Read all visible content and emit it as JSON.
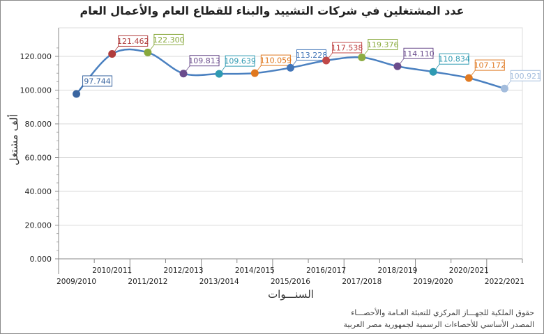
{
  "chart_data": {
    "type": "line",
    "title": "عدد المشتغلين في شركات التشييد والبناء للقطاع العام والأعمال العام",
    "ylabel": "ألف مشتغل",
    "xlabel": "السنـــوات",
    "categories": [
      "2009/2010",
      "2010/2011",
      "2011/2012",
      "2012/2013",
      "2013/2014",
      "2014/2015",
      "2015/2016",
      "2016/2017",
      "2017/2018",
      "2018/2019",
      "2019/2020",
      "2020/2021",
      "2022/2021"
    ],
    "values": [
      97.744,
      121.462,
      122.3,
      109.813,
      109.639,
      110.059,
      113.228,
      117.538,
      119.376,
      114.11,
      110.834,
      107.172,
      100.921
    ],
    "data_labels": [
      "97.744",
      "121.462",
      "122.300",
      "109.813",
      "109.639",
      "110.059",
      "113.228",
      "117.538",
      "119.376",
      "114.110",
      "110.834",
      "107.172",
      "100.921"
    ],
    "point_colors": [
      "#3a65a0",
      "#b03c3c",
      "#88a83c",
      "#6a4c8c",
      "#2f9ab2",
      "#e0781e",
      "#4275b8",
      "#c04848",
      "#8cac42",
      "#6a4c8c",
      "#2f9ab2",
      "#e07a22",
      "#a3bcdc"
    ],
    "line_color": "#4a80c0",
    "ylim": [
      0,
      130
    ],
    "yticks": [
      "0.000",
      "20.000",
      "40.000",
      "60.000",
      "80.000",
      "100.000",
      "120.000"
    ],
    "grid": true,
    "smooth": true
  },
  "footer": {
    "line1": "حقوق الملكية للجهـــاز المركزي للتعبئة العـامة والأحصـــاء",
    "line2": "المصدر الأساسي للأحصاءات الرسمية لجمهورية مصر العربية"
  }
}
